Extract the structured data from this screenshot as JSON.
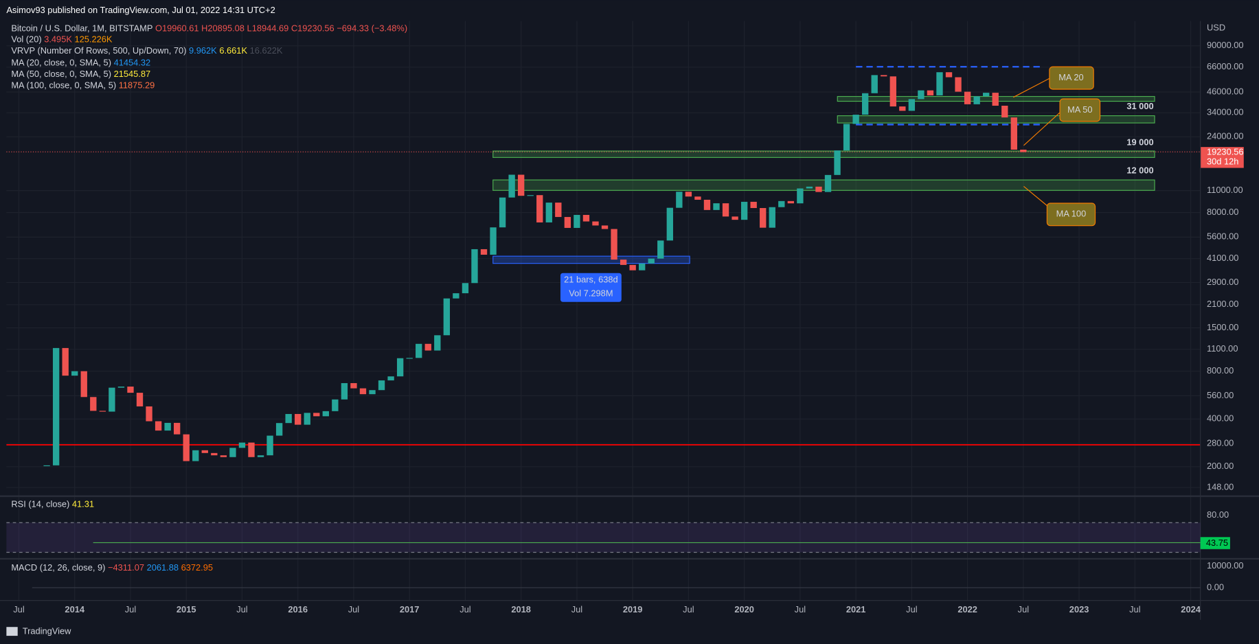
{
  "header": {
    "publisher": "Asimov93 published on TradingView.com, Jul 01, 2022 14:31 UTC+2",
    "symbol": "Bitcoin / U.S. Dollar, 1M, BITSTAMP",
    "ohlc": [
      "O19960.61",
      "H20895.08",
      "L18944.69",
      "C19230.56",
      "−694.33 (−3.48%)"
    ]
  },
  "indicators": [
    {
      "name": "Vol (20)",
      "values": [
        "3.495K",
        "125.226K"
      ]
    },
    {
      "name": "VRVP (Number Of Rows, 500, Up/Down, 70)",
      "values": [
        "9.962K",
        "6.661K",
        "16.622K"
      ]
    },
    {
      "name": "MA (20, close, 0, SMA, 5)",
      "values": [
        "41454.32"
      ]
    },
    {
      "name": "MA (50, close, 0, SMA, 5)",
      "values": [
        "21545.87"
      ]
    },
    {
      "name": "MA (100, close, 0, SMA, 5)",
      "values": [
        "11875.29"
      ]
    }
  ],
  "rsi": {
    "name": "RSI (14, close)",
    "value": "41.31",
    "tick": "80.00",
    "last": "43.75"
  },
  "macd": {
    "name": "MACD (12, 26, close, 9)",
    "values": [
      "−4311.07",
      "2061.88",
      "6372.95"
    ],
    "ticks": [
      "10000.00",
      "0.00"
    ]
  },
  "footer": "TradingView",
  "chart_data": {
    "type": "candlestick",
    "y_label": "USD",
    "log_scale": true,
    "grid": true,
    "up_color": "#26a69a",
    "down_color": "#ef5350",
    "last_price_label": "19230.56",
    "countdown": "30d 12h",
    "annotations": [
      "MA 20",
      "MA 50",
      "MA 100",
      "31 000",
      "19 000",
      "12 000"
    ],
    "measure": [
      "21 bars, 638d",
      "Vol 7.298M"
    ],
    "ylim": [
      132,
      123000
    ],
    "yticks": [
      {
        "value": 148,
        "label": "148.00"
      },
      {
        "value": 200,
        "label": "200.00"
      },
      {
        "value": 280,
        "label": "280.00"
      },
      {
        "value": 400,
        "label": "400.00"
      },
      {
        "value": 560,
        "label": "560.00"
      },
      {
        "value": 800,
        "label": "800.00"
      },
      {
        "value": 1100,
        "label": "1100.00"
      },
      {
        "value": 1500,
        "label": "1500.00"
      },
      {
        "value": 2100,
        "label": "2100.00"
      },
      {
        "value": 2900,
        "label": "2900.00"
      },
      {
        "value": 4100,
        "label": "4100.00"
      },
      {
        "value": 5600,
        "label": "5600.00"
      },
      {
        "value": 8000,
        "label": "8000.00"
      },
      {
        "value": 11000,
        "label": "11000.00"
      },
      {
        "value": 24000,
        "label": "24000.00"
      },
      {
        "value": 34000,
        "label": "34000.00"
      },
      {
        "value": 46000,
        "label": "46000.00"
      },
      {
        "value": 66000,
        "label": "66000.00"
      },
      {
        "value": 90000,
        "label": "90000.00"
      }
    ],
    "xticks": [
      {
        "value": "2013-07",
        "label": "Jul"
      },
      {
        "value": "2014-01",
        "label": "2014"
      },
      {
        "value": "2014-07",
        "label": "Jul"
      },
      {
        "value": "2015-01",
        "label": "2015"
      },
      {
        "value": "2015-07",
        "label": "Jul"
      },
      {
        "value": "2016-01",
        "label": "2016"
      },
      {
        "value": "2016-07",
        "label": "Jul"
      },
      {
        "value": "2017-01",
        "label": "2017"
      },
      {
        "value": "2017-07",
        "label": "Jul"
      },
      {
        "value": "2018-01",
        "label": "2018"
      },
      {
        "value": "2018-07",
        "label": "Jul"
      },
      {
        "value": "2019-01",
        "label": "2019"
      },
      {
        "value": "2019-07",
        "label": "Jul"
      },
      {
        "value": "2020-01",
        "label": "2020"
      },
      {
        "value": "2020-07",
        "label": "Jul"
      },
      {
        "value": "2021-01",
        "label": "2021"
      },
      {
        "value": "2021-07",
        "label": "Jul"
      },
      {
        "value": "2022-01",
        "label": "2022"
      },
      {
        "value": "2022-07",
        "label": "Jul"
      },
      {
        "value": "2023-01",
        "label": "2023"
      },
      {
        "value": "2023-07",
        "label": "Jul"
      },
      {
        "value": "2024-01",
        "label": "2024"
      }
    ],
    "x": [
      "2013-10",
      "2013-11",
      "2013-12",
      "2014-01",
      "2014-02",
      "2014-03",
      "2014-04",
      "2014-05",
      "2014-06",
      "2014-07",
      "2014-08",
      "2014-09",
      "2014-10",
      "2014-11",
      "2014-12",
      "2015-01",
      "2015-02",
      "2015-03",
      "2015-04",
      "2015-05",
      "2015-06",
      "2015-07",
      "2015-08",
      "2015-09",
      "2015-10",
      "2015-11",
      "2015-12",
      "2016-01",
      "2016-02",
      "2016-03",
      "2016-04",
      "2016-05",
      "2016-06",
      "2016-07",
      "2016-08",
      "2016-09",
      "2016-10",
      "2016-11",
      "2016-12",
      "2017-01",
      "2017-02",
      "2017-03",
      "2017-04",
      "2017-05",
      "2017-06",
      "2017-07",
      "2017-08",
      "2017-09",
      "2017-10",
      "2017-11",
      "2017-12",
      "2018-01",
      "2018-02",
      "2018-03",
      "2018-04",
      "2018-05",
      "2018-06",
      "2018-07",
      "2018-08",
      "2018-09",
      "2018-10",
      "2018-11",
      "2018-12",
      "2019-01",
      "2019-02",
      "2019-03",
      "2019-04",
      "2019-05",
      "2019-06",
      "2019-07",
      "2019-08",
      "2019-09",
      "2019-10",
      "2019-11",
      "2019-12",
      "2020-01",
      "2020-02",
      "2020-03",
      "2020-04",
      "2020-05",
      "2020-06",
      "2020-07",
      "2020-08",
      "2020-09",
      "2020-10",
      "2020-11",
      "2020-12",
      "2021-01",
      "2021-02",
      "2021-03",
      "2021-04",
      "2021-05",
      "2021-06",
      "2021-07",
      "2021-08",
      "2021-09",
      "2021-10",
      "2021-11",
      "2021-12",
      "2022-01",
      "2022-02",
      "2022-03",
      "2022-04",
      "2022-05",
      "2022-06",
      "2022-07"
    ],
    "close": [
      204,
      1120,
      750,
      800,
      550,
      450,
      445,
      630,
      640,
      585,
      480,
      387,
      338,
      378,
      320,
      217,
      254,
      244,
      236,
      230,
      263,
      284,
      230,
      236,
      314,
      377,
      430,
      368,
      437,
      416,
      448,
      531,
      673,
      624,
      573,
      608,
      700,
      742,
      966,
      970,
      1190,
      1080,
      1348,
      2300,
      2480,
      2875,
      4700,
      4338,
      6450,
      9950,
      13850,
      10200,
      10300,
      6930,
      9240,
      7500,
      6400,
      7730,
      7030,
      6630,
      6300,
      4040,
      3740,
      3460,
      3820,
      4100,
      5330,
      8570,
      10820,
      10090,
      9630,
      8300,
      9150,
      7550,
      7200,
      9350,
      8540,
      6420,
      8650,
      9450,
      9140,
      11350,
      11650,
      10780,
      13800,
      19700,
      28950,
      33100,
      45200,
      58800,
      57700,
      37300,
      35000,
      41500,
      47100,
      43800,
      61300,
      57000,
      46200,
      38500,
      43200,
      45500,
      37700,
      31800,
      19925,
      19230.56
    ]
  }
}
